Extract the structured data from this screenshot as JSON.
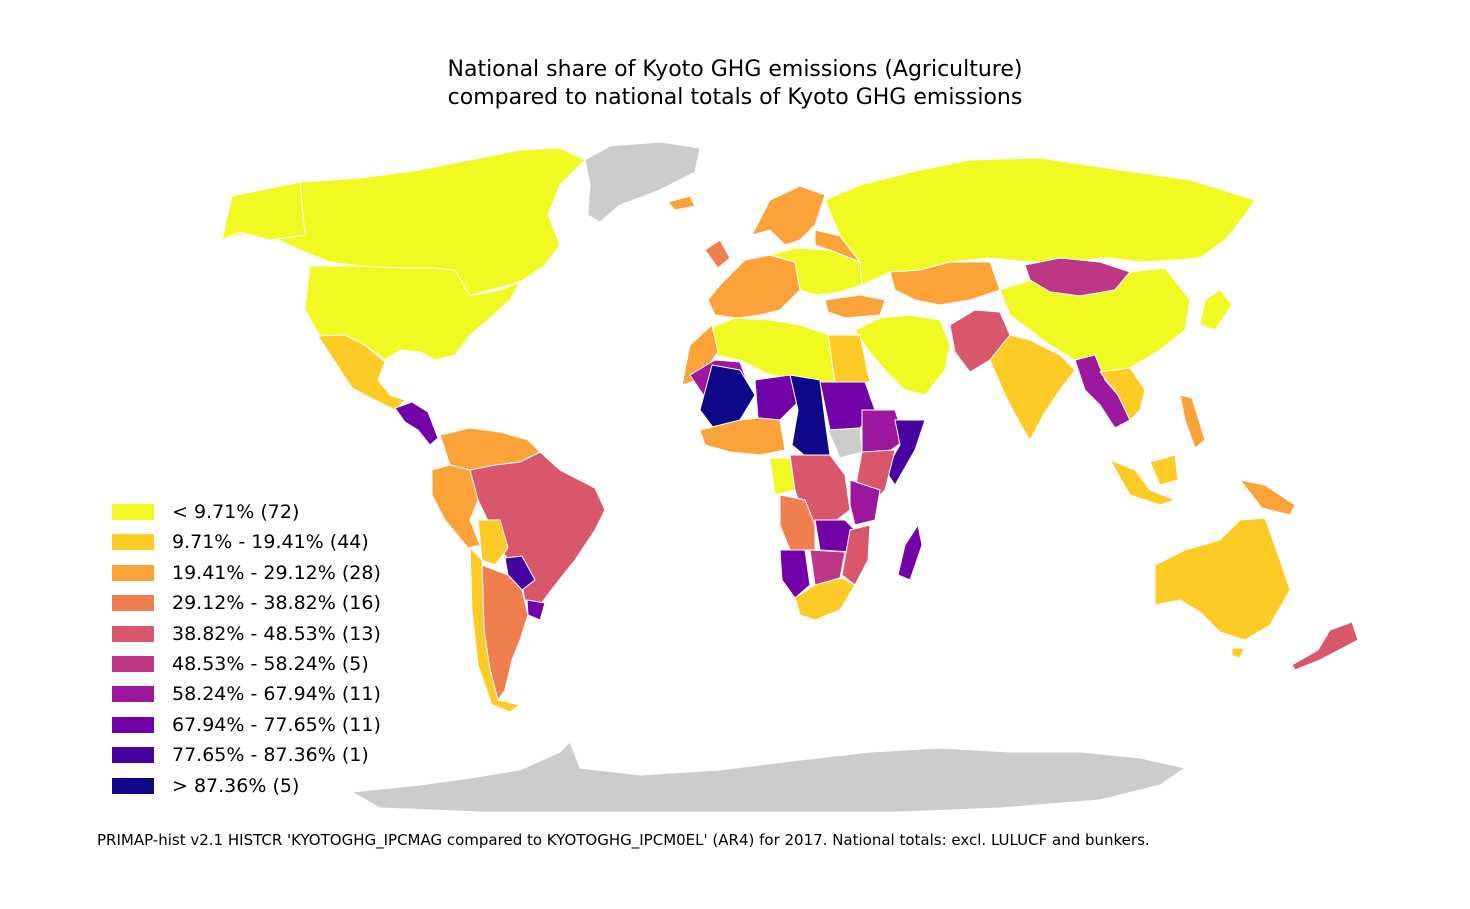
{
  "title": {
    "line1": "National share of Kyoto GHG emissions (Agriculture)",
    "line2": "compared to national totals of Kyoto GHG emissions"
  },
  "legend": [
    {
      "label": "< 9.71% (72)",
      "color": "#f0f921"
    },
    {
      "label": "9.71% - 19.41% (44)",
      "color": "#fdca26"
    },
    {
      "label": "19.41% - 29.12% (28)",
      "color": "#fba238"
    },
    {
      "label": "29.12% - 38.82% (16)",
      "color": "#f07f4f"
    },
    {
      "label": "38.82% - 48.53% (13)",
      "color": "#d8576b"
    },
    {
      "label": "48.53% - 58.24% (5)",
      "color": "#bd3786"
    },
    {
      "label": "58.24% - 67.94% (11)",
      "color": "#9c179e"
    },
    {
      "label": "67.94% - 77.65% (11)",
      "color": "#7201a8"
    },
    {
      "label": "77.65% - 87.36% (1)",
      "color": "#46039f"
    },
    {
      "label": "> 87.36% (5)",
      "color": "#0d0887"
    }
  ],
  "nodata_color": "#cccccc",
  "source": "PRIMAP-hist v2.1 HISTCR 'KYOTOGHG_IPCMAG compared to KYOTOGHG_IPCM0EL' (AR4) for 2017. National totals: excl. LULUCF and bunkers."
}
